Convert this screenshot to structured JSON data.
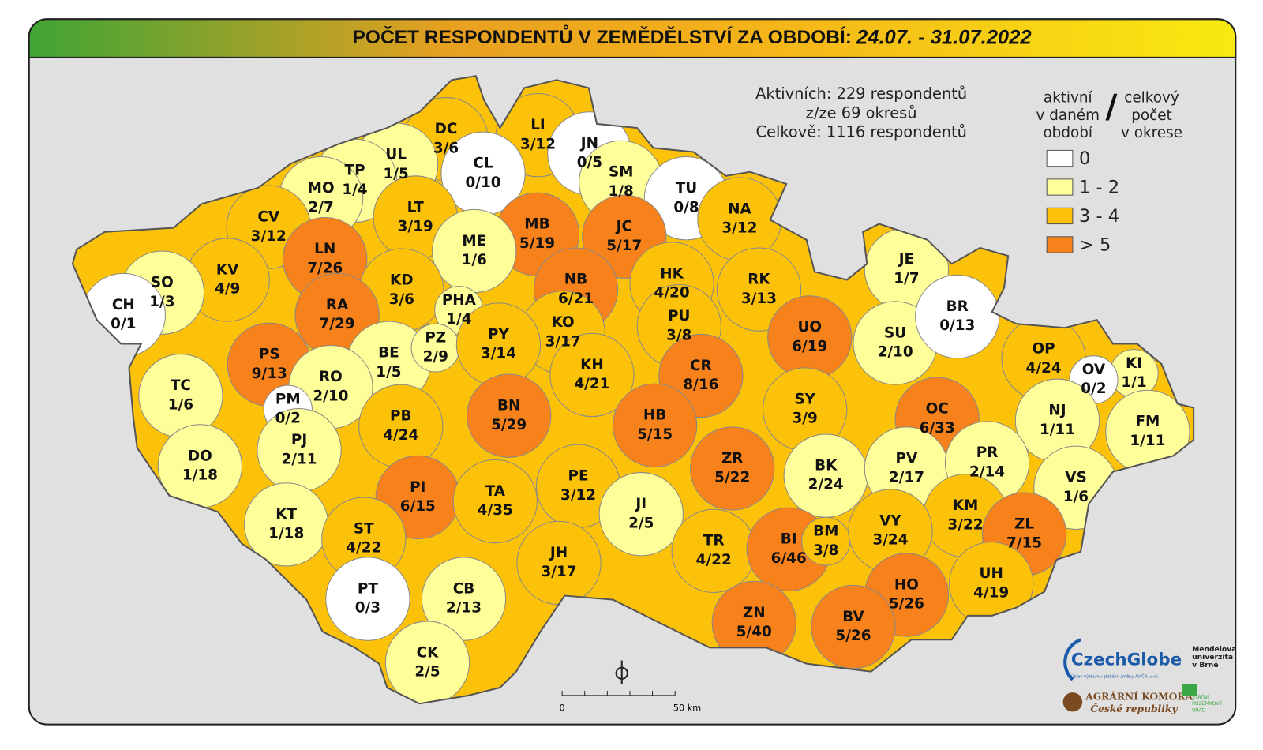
{
  "header": {
    "title": "POČET RESPONDENTŮ V ZEMĚDĚLSTVÍ ZA OBDOBÍ:",
    "period": "24.07. - 31.07.2022"
  },
  "summary": [
    "Aktivních: 229 respondentů",
    "z/ze 69 okresů",
    "Celkově: 1116 respondentů"
  ],
  "legend": {
    "left": [
      "aktivní",
      "v daném",
      "období"
    ],
    "separator": "/",
    "right": [
      "celkový",
      "počet",
      "v okrese"
    ],
    "items": [
      {
        "label": "0",
        "color": "#ffffff"
      },
      {
        "label": "1 - 2",
        "color": "#ffff99"
      },
      {
        "label": "3 - 4",
        "color": "#fcc20a"
      },
      {
        "label": "> 5",
        "color": "#f7821b"
      }
    ]
  },
  "districts": [
    {
      "code": "DC",
      "value": "3/6",
      "color": "#fcc20a"
    },
    {
      "code": "LI",
      "value": "3/12",
      "color": "#fcc20a"
    },
    {
      "code": "JN",
      "value": "0/5",
      "color": "#ffffff"
    },
    {
      "code": "CL",
      "value": "0/10",
      "color": "#ffffff"
    },
    {
      "code": "UL",
      "value": "1/5",
      "color": "#ffff99"
    },
    {
      "code": "TP",
      "value": "1/4",
      "color": "#ffff99"
    },
    {
      "code": "MO",
      "value": "2/7",
      "color": "#ffff99"
    },
    {
      "code": "SM",
      "value": "1/8",
      "color": "#ffff99"
    },
    {
      "code": "TU",
      "value": "0/8",
      "color": "#ffffff"
    },
    {
      "code": "NA",
      "value": "3/12",
      "color": "#fcc20a"
    },
    {
      "code": "CV",
      "value": "3/12",
      "color": "#fcc20a"
    },
    {
      "code": "LT",
      "value": "3/19",
      "color": "#fcc20a"
    },
    {
      "code": "MB",
      "value": "5/19",
      "color": "#f7821b"
    },
    {
      "code": "JC",
      "value": "5/17",
      "color": "#f7821b"
    },
    {
      "code": "LN",
      "value": "7/26",
      "color": "#f7821b"
    },
    {
      "code": "ME",
      "value": "1/6",
      "color": "#ffff99"
    },
    {
      "code": "KV",
      "value": "4/9",
      "color": "#fcc20a"
    },
    {
      "code": "SO",
      "value": "1/3",
      "color": "#ffff99"
    },
    {
      "code": "KD",
      "value": "3/6",
      "color": "#fcc20a"
    },
    {
      "code": "NB",
      "value": "6/21",
      "color": "#f7821b"
    },
    {
      "code": "HK",
      "value": "4/20",
      "color": "#fcc20a"
    },
    {
      "code": "RK",
      "value": "3/13",
      "color": "#fcc20a"
    },
    {
      "code": "JE",
      "value": "1/7",
      "color": "#ffff99"
    },
    {
      "code": "CH",
      "value": "0/1",
      "color": "#ffffff"
    },
    {
      "code": "RA",
      "value": "7/29",
      "color": "#f7821b"
    },
    {
      "code": "PHA",
      "value": "1/4",
      "color": "#ffff99"
    },
    {
      "code": "KO",
      "value": "3/17",
      "color": "#fcc20a"
    },
    {
      "code": "PU",
      "value": "3/8",
      "color": "#fcc20a"
    },
    {
      "code": "UO",
      "value": "6/19",
      "color": "#f7821b"
    },
    {
      "code": "SU",
      "value": "2/10",
      "color": "#ffff99"
    },
    {
      "code": "BR",
      "value": "0/13",
      "color": "#ffffff"
    },
    {
      "code": "PS",
      "value": "9/13",
      "color": "#f7821b"
    },
    {
      "code": "BE",
      "value": "1/5",
      "color": "#ffff99"
    },
    {
      "code": "PZ",
      "value": "2/9",
      "color": "#ffff99"
    },
    {
      "code": "PY",
      "value": "3/14",
      "color": "#fcc20a"
    },
    {
      "code": "KH",
      "value": "4/21",
      "color": "#fcc20a"
    },
    {
      "code": "CR",
      "value": "8/16",
      "color": "#f7821b"
    },
    {
      "code": "OP",
      "value": "4/24",
      "color": "#fcc20a"
    },
    {
      "code": "KI",
      "value": "1/1",
      "color": "#ffff99"
    },
    {
      "code": "OV",
      "value": "0/2",
      "color": "#ffffff"
    },
    {
      "code": "TC",
      "value": "1/6",
      "color": "#ffff99"
    },
    {
      "code": "RO",
      "value": "2/10",
      "color": "#ffff99"
    },
    {
      "code": "SY",
      "value": "3/9",
      "color": "#fcc20a"
    },
    {
      "code": "OC",
      "value": "6/33",
      "color": "#f7821b"
    },
    {
      "code": "NJ",
      "value": "1/11",
      "color": "#ffff99"
    },
    {
      "code": "FM",
      "value": "1/11",
      "color": "#ffff99"
    },
    {
      "code": "PM",
      "value": "0/2",
      "color": "#ffffff"
    },
    {
      "code": "BN",
      "value": "5/29",
      "color": "#f7821b"
    },
    {
      "code": "HB",
      "value": "5/15",
      "color": "#f7821b"
    },
    {
      "code": "PB",
      "value": "4/24",
      "color": "#fcc20a"
    },
    {
      "code": "PJ",
      "value": "2/11",
      "color": "#ffff99"
    },
    {
      "code": "DO",
      "value": "1/18",
      "color": "#ffff99"
    },
    {
      "code": "ZR",
      "value": "5/22",
      "color": "#f7821b"
    },
    {
      "code": "BK",
      "value": "2/24",
      "color": "#ffff99"
    },
    {
      "code": "PV",
      "value": "2/17",
      "color": "#ffff99"
    },
    {
      "code": "PR",
      "value": "2/14",
      "color": "#ffff99"
    },
    {
      "code": "VS",
      "value": "1/6",
      "color": "#ffff99"
    },
    {
      "code": "PI",
      "value": "6/15",
      "color": "#f7821b"
    },
    {
      "code": "TA",
      "value": "4/35",
      "color": "#fcc20a"
    },
    {
      "code": "PE",
      "value": "3/12",
      "color": "#fcc20a"
    },
    {
      "code": "JI",
      "value": "2/5",
      "color": "#ffff99"
    },
    {
      "code": "KM",
      "value": "3/22",
      "color": "#fcc20a"
    },
    {
      "code": "ZL",
      "value": "7/15",
      "color": "#f7821b"
    },
    {
      "code": "KT",
      "value": "1/18",
      "color": "#ffff99"
    },
    {
      "code": "ST",
      "value": "4/22",
      "color": "#fcc20a"
    },
    {
      "code": "TR",
      "value": "4/22",
      "color": "#fcc20a"
    },
    {
      "code": "BI",
      "value": "6/46",
      "color": "#f7821b"
    },
    {
      "code": "BM",
      "value": "3/8",
      "color": "#fcc20a"
    },
    {
      "code": "VY",
      "value": "3/24",
      "color": "#fcc20a"
    },
    {
      "code": "JH",
      "value": "3/17",
      "color": "#fcc20a"
    },
    {
      "code": "UH",
      "value": "4/19",
      "color": "#fcc20a"
    },
    {
      "code": "PT",
      "value": "0/3",
      "color": "#ffffff"
    },
    {
      "code": "CB",
      "value": "2/13",
      "color": "#ffff99"
    },
    {
      "code": "HO",
      "value": "5/26",
      "color": "#f7821b"
    },
    {
      "code": "ZN",
      "value": "5/40",
      "color": "#f7821b"
    },
    {
      "code": "BV",
      "value": "5/26",
      "color": "#f7821b"
    },
    {
      "code": "CK",
      "value": "2/5",
      "color": "#ffff99"
    }
  ],
  "scale": {
    "start": "0",
    "end": "50 km"
  },
  "logos": {
    "czechglobe": "CzechGlobe",
    "czechglobe_sub": "Ústav výzkumu globální změny AV ČR, v.v.i.",
    "mendelu": [
      "Mendelova",
      "univerzita",
      "v Brně"
    ],
    "agrarni": [
      "AGRÁRNÍ KOMORA",
      "České republiky"
    ],
    "spu": [
      "STÁTNÍ",
      "POZEMKOVÝ",
      "ÚŘAD"
    ]
  }
}
